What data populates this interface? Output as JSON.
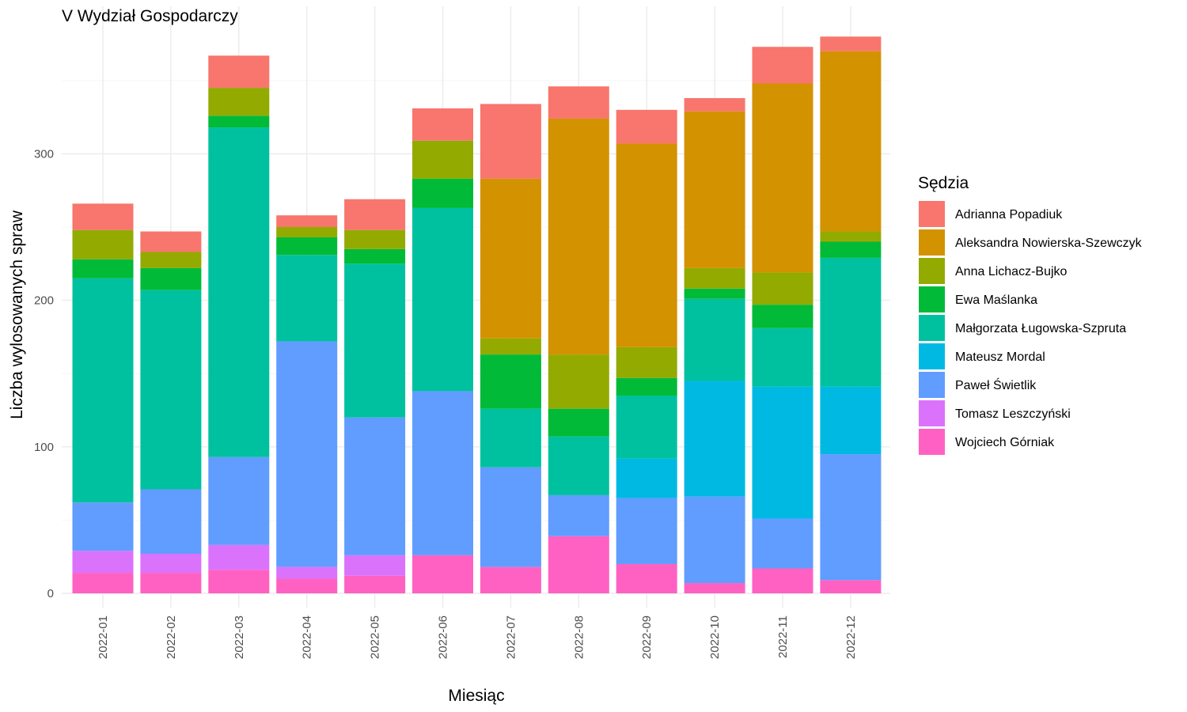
{
  "chart_data": {
    "type": "bar",
    "stacked": true,
    "title": "V Wydział Gospodarczy",
    "xlabel": "Miesiąc",
    "ylabel": "Liczba wylosowanych spraw",
    "ylim": [
      0,
      380
    ],
    "yticks": [
      0,
      100,
      200,
      300
    ],
    "grid": true,
    "legend_title": "Sędzia",
    "legend_position": "right",
    "categories": [
      "2022-01",
      "2022-02",
      "2022-03",
      "2022-04",
      "2022-05",
      "2022-06",
      "2022-07",
      "2022-08",
      "2022-09",
      "2022-10",
      "2022-11",
      "2022-12"
    ],
    "series": [
      {
        "name": "Adrianna Popadiuk",
        "color": "#F8766D",
        "values": [
          18,
          14,
          22,
          8,
          21,
          22,
          51,
          22,
          23,
          9,
          25,
          10
        ]
      },
      {
        "name": "Aleksandra Nowierska-Szewczyk",
        "color": "#D39200",
        "values": [
          0,
          0,
          0,
          0,
          0,
          0,
          109,
          161,
          139,
          107,
          129,
          123
        ]
      },
      {
        "name": "Anna Lichacz-Bujko",
        "color": "#93AA00",
        "values": [
          20,
          11,
          19,
          7,
          13,
          26,
          11,
          37,
          21,
          14,
          22,
          7
        ]
      },
      {
        "name": "Ewa Maślanka",
        "color": "#00BA38",
        "values": [
          13,
          15,
          8,
          12,
          10,
          20,
          37,
          19,
          12,
          7,
          16,
          11
        ]
      },
      {
        "name": "Małgorzata Ługowska-Szpruta",
        "color": "#00C19F",
        "values": [
          153,
          136,
          225,
          59,
          105,
          125,
          40,
          40,
          43,
          56,
          40,
          88
        ]
      },
      {
        "name": "Mateusz Mordal",
        "color": "#00B9E3",
        "values": [
          0,
          0,
          0,
          0,
          0,
          0,
          0,
          0,
          27,
          79,
          90,
          46
        ]
      },
      {
        "name": "Paweł Świetlik",
        "color": "#619CFF",
        "values": [
          33,
          44,
          60,
          154,
          94,
          112,
          68,
          28,
          45,
          59,
          34,
          86
        ]
      },
      {
        "name": "Tomasz Leszczyński",
        "color": "#DB72FB",
        "values": [
          15,
          13,
          17,
          8,
          14,
          0,
          0,
          0,
          0,
          0,
          0,
          0
        ]
      },
      {
        "name": "Wojciech Górniak",
        "color": "#FF61C3",
        "values": [
          14,
          14,
          16,
          10,
          12,
          26,
          18,
          39,
          20,
          7,
          17,
          9
        ]
      }
    ]
  }
}
